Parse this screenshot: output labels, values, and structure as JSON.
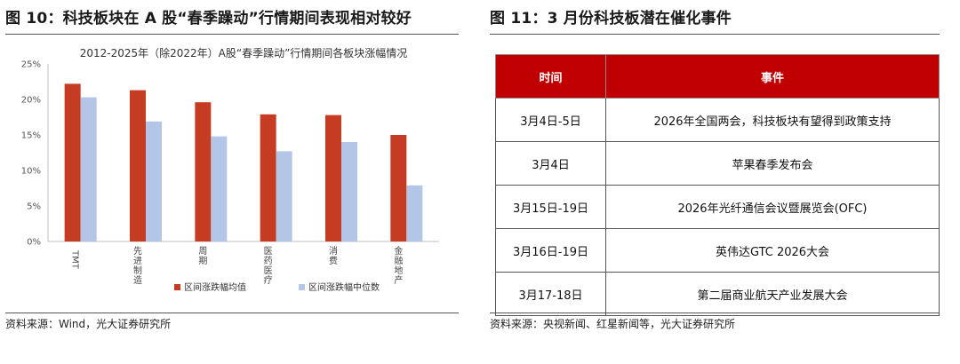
{
  "figure10": {
    "title": "图 10：科技板块在 A 股“春季躁动”行情期间表现相对较好",
    "source": "资料来源：Wind，光大证券研究所"
  },
  "chart_data": {
    "type": "bar",
    "title": "2012-2025年（除2022年）A股“春季躁动”行情期间各板块涨幅情况",
    "categories": [
      "TMT",
      "先进制造",
      "周期",
      "医药医疗",
      "消费",
      "金融地产"
    ],
    "series": [
      {
        "name": "区间涨跌幅均值",
        "values": [
          22.2,
          21.3,
          19.6,
          17.9,
          17.8,
          15.0
        ],
        "color": "#c63c22"
      },
      {
        "name": "区间涨跌幅中位数",
        "values": [
          20.3,
          16.9,
          14.8,
          12.7,
          14.0,
          7.9
        ],
        "color": "#b3c6e7"
      }
    ],
    "ylim": [
      0,
      25
    ],
    "yticks": [
      "0%",
      "5%",
      "10%",
      "15%",
      "20%",
      "25%"
    ],
    "xlabel": "",
    "ylabel": "",
    "legend": "bottom",
    "grid": false
  },
  "figure11": {
    "title": "图 11：3 月份科技板潜在催化事件",
    "headers": {
      "time": "时间",
      "event": "事件"
    },
    "rows": [
      {
        "time": "3月4日-5日",
        "event": "2026年全国两会，科技板块有望得到政策支持"
      },
      {
        "time": "3月4日",
        "event": "苹果春季发布会"
      },
      {
        "time": "3月15日-19日",
        "event": "2026年光纤通信会议暨展览会(OFC)"
      },
      {
        "time": "3月16日-19日",
        "event": "英伟达GTC 2026大会"
      },
      {
        "time": "3月17-18日",
        "event": "第二届商业航天产业发展大会"
      }
    ],
    "source": "资料来源：央视新闻、红星新闻等，光大证券研究所"
  }
}
